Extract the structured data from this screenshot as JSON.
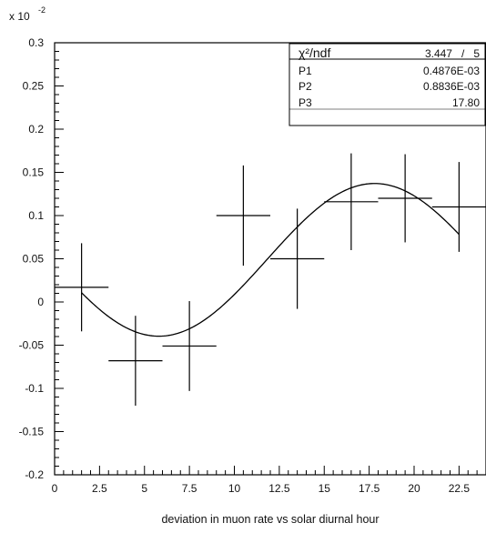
{
  "chart_data": {
    "type": "scatter",
    "title": "",
    "xlabel": "deviation in muon rate vs solar diurnal hour",
    "ylabel": "",
    "y_multiplier": {
      "base": "x 10",
      "exponent": "-2"
    },
    "xlim": [
      0,
      24
    ],
    "ylim": [
      -0.2,
      0.3
    ],
    "grid": false,
    "x_ticks": [
      0,
      2.5,
      5,
      7.5,
      10,
      12.5,
      15,
      17.5,
      20,
      22.5
    ],
    "x_tick_labels": [
      "0",
      "2.5",
      "5",
      "7.5",
      "10",
      "12.5",
      "15",
      "17.5",
      "20",
      "22.5"
    ],
    "y_ticks": [
      -0.2,
      -0.15,
      -0.1,
      -0.05,
      0,
      0.05,
      0.1,
      0.15,
      0.2,
      0.25,
      0.3
    ],
    "y_tick_labels": [
      "-0.2",
      "-0.15",
      "-0.1",
      "-0.05",
      "0",
      "0.05",
      "0.1",
      "0.15",
      "0.2",
      "0.25",
      "0.3"
    ],
    "points": [
      {
        "x": 1.5,
        "y": 0.017,
        "xerr": 1.5,
        "yerr": 0.051
      },
      {
        "x": 4.5,
        "y": -0.068,
        "xerr": 1.5,
        "yerr": 0.052
      },
      {
        "x": 7.5,
        "y": -0.051,
        "xerr": 1.5,
        "yerr": 0.052
      },
      {
        "x": 10.5,
        "y": 0.1,
        "xerr": 1.5,
        "yerr": 0.058
      },
      {
        "x": 13.5,
        "y": 0.05,
        "xerr": 1.5,
        "yerr": 0.058
      },
      {
        "x": 16.5,
        "y": 0.116,
        "xerr": 1.5,
        "yerr": 0.056
      },
      {
        "x": 19.5,
        "y": 0.12,
        "xerr": 1.5,
        "yerr": 0.051
      },
      {
        "x": 22.5,
        "y": 0.11,
        "xerr": 1.5,
        "yerr": 0.052
      }
    ],
    "fit": {
      "function": "P1 + P2*sin(2*pi*(x - P3 + 6)/24)",
      "x_range": [
        1.5,
        22.5
      ],
      "p1": 0.0004876,
      "p2": 0.0008836,
      "p3": 17.8
    },
    "stats_box": {
      "position": "top-right",
      "rows": [
        {
          "label": "χ²/ndf",
          "value": "3.447   /   5"
        },
        {
          "label": "P1",
          "value": "0.4876E-03"
        },
        {
          "label": "P2",
          "value": "0.8836E-03"
        },
        {
          "label": "P3",
          "value": "17.80"
        }
      ]
    }
  }
}
